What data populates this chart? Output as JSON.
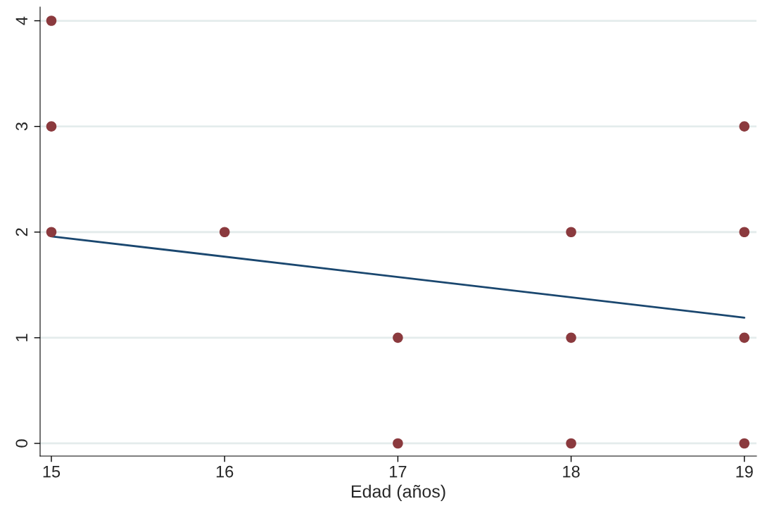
{
  "chart_data": {
    "type": "scatter",
    "xlabel": "Edad (años)",
    "xlim": [
      14.935,
      19.07
    ],
    "ylim": [
      -0.12,
      4.13
    ],
    "xticks": [
      15,
      16,
      17,
      18,
      19
    ],
    "yticks": [
      0,
      1,
      2,
      3,
      4
    ],
    "grid": "y",
    "series": [
      {
        "marker": "circle",
        "color": "#8b3a3e",
        "x": [
          15,
          15,
          15,
          16,
          17,
          17,
          18,
          18,
          18,
          19,
          19,
          19,
          19
        ],
        "values": [
          4,
          3,
          2,
          2,
          1,
          0,
          2,
          1,
          0,
          3,
          2,
          1,
          0
        ]
      },
      {
        "type": "line",
        "color": "#1a476f",
        "x": [
          15,
          19
        ],
        "values": [
          1.96,
          1.19
        ],
        "line_style": "solid",
        "marker": "none"
      }
    ]
  }
}
